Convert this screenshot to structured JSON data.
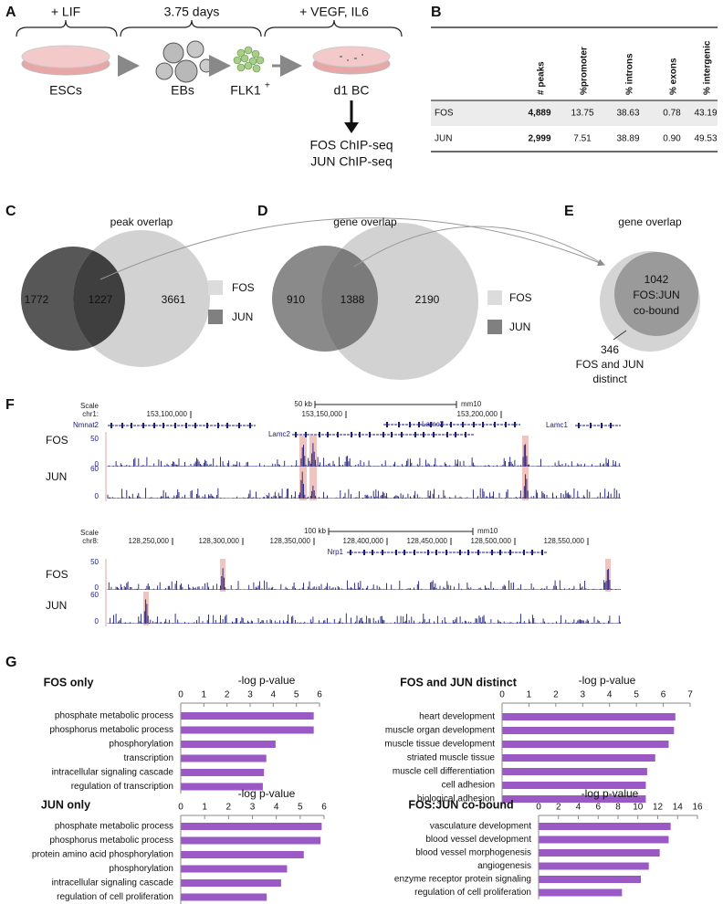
{
  "panel_labels": [
    "A",
    "B",
    "C",
    "D",
    "E",
    "F",
    "G"
  ],
  "panel_a": {
    "steps": [
      "+ LIF",
      "3.75 days",
      "+ VEGF, IL6"
    ],
    "stages": [
      "ESCs",
      "EBs",
      "FLK1",
      "d1 BC"
    ],
    "flk1_superscript": "+",
    "outputs": [
      "FOS ChIP-seq",
      "JUN ChIP-seq"
    ]
  },
  "panel_b": {
    "columns": [
      "# peaks",
      "%promoter",
      "% introns",
      "% exons",
      "% intergenic"
    ],
    "rows": [
      [
        "FOS",
        "4,889",
        "13.75",
        "38.63",
        "0.78",
        "43.19"
      ],
      [
        "JUN",
        "2,999",
        "7.51",
        "38.89",
        "0.90",
        "49.53"
      ]
    ]
  },
  "panel_c": {
    "title": "peak overlap",
    "jun_only": 1772,
    "overlap": 1227,
    "fos_only": 3661,
    "legend": [
      "FOS",
      "JUN"
    ]
  },
  "panel_d": {
    "title": "gene overlap",
    "jun_only": 910,
    "overlap": 1388,
    "fos_only": 2190,
    "legend": [
      "FOS",
      "JUN"
    ]
  },
  "panel_e": {
    "title": "gene overlap",
    "inner": [
      "1042",
      "FOS:JUN",
      "co-bound"
    ],
    "outer": [
      "346",
      "FOS and JUN",
      "distinct"
    ]
  },
  "panel_f": {
    "loci": [
      {
        "scale": "Scale",
        "chrom": "chr1:",
        "positions": [
          "153,100,000",
          "153,150,000",
          "153,200,000"
        ],
        "scale_bar": "50 kb",
        "assembly": "mm10",
        "genes": [
          "Nmnat2",
          "Lamc2",
          "Lamc2",
          "Lamc1"
        ],
        "tracks": [
          {
            "name": "FOS",
            "max": "50",
            "min": "0"
          },
          {
            "name": "JUN",
            "max": "60",
            "min": "0"
          }
        ]
      },
      {
        "scale": "Scale",
        "chrom": "chr8:",
        "positions": [
          "128,250,000",
          "128,300,000",
          "128,350,000",
          "128,400,000",
          "128,450,000",
          "128,500,000",
          "128,550,000"
        ],
        "scale_bar": "100 kb",
        "assembly": "mm10",
        "genes": [
          "Nrp1"
        ],
        "tracks": [
          {
            "name": "FOS",
            "max": "50",
            "min": "0"
          },
          {
            "name": "JUN",
            "max": "60",
            "min": "0"
          }
        ]
      }
    ]
  },
  "chart_data": [
    {
      "type": "bar",
      "orientation": "horizontal",
      "title": "FOS only",
      "xlabel": "-log p-value",
      "categories": [
        "phosphate metabolic process",
        "phosphorus metabolic process",
        "phosphorylation",
        "transcription",
        "intracellular signaling cascade",
        "regulation of transcription"
      ],
      "values": [
        5.75,
        5.75,
        4.1,
        3.7,
        3.6,
        3.55
      ],
      "color": "#9b59c6",
      "xlim": [
        0,
        6
      ],
      "xticks": [
        0,
        1,
        2,
        3,
        4,
        5,
        6
      ]
    },
    {
      "type": "bar",
      "orientation": "horizontal",
      "title": "FOS and JUN distinct",
      "xlabel": "-log p-value",
      "categories": [
        "heart development",
        "muscle organ development",
        "muscle tissue development",
        "striated muscle tissue",
        "muscle cell differentiation",
        "cell adhesion",
        "biological adhesion"
      ],
      "values": [
        6.45,
        6.4,
        6.2,
        5.7,
        5.4,
        5.35,
        5.35
      ],
      "color": "#9b59c6",
      "xlim": [
        0,
        7
      ],
      "xticks": [
        0,
        1,
        2,
        3,
        4,
        5,
        6,
        7
      ]
    },
    {
      "type": "bar",
      "orientation": "horizontal",
      "title": "JUN only",
      "xlabel": "-log p-value",
      "categories": [
        "phosphate metabolic process",
        "phosphorus metabolic process",
        "protein amino acid phosphorylation",
        "phosphorylation",
        "intracellular signaling cascade",
        "regulation of cell proliferation"
      ],
      "values": [
        5.9,
        5.85,
        5.15,
        4.45,
        4.2,
        3.6
      ],
      "color": "#9b59c6",
      "xlim": [
        0,
        6
      ],
      "xticks": [
        0,
        1,
        2,
        3,
        4,
        5,
        6
      ]
    },
    {
      "type": "bar",
      "orientation": "horizontal",
      "title": "FOS:JUN co-bound",
      "xlabel": "-log p-value",
      "categories": [
        "vasculature development",
        "blood vessel development",
        "blood vessel morphogenesis",
        "angiogenesis",
        "enzyme receptor protein signaling",
        "regulation of cell proliferation"
      ],
      "values": [
        13.3,
        13.1,
        12.2,
        11.1,
        10.3,
        8.4
      ],
      "color": "#9b59c6",
      "xlim": [
        0,
        16
      ],
      "xticks": [
        0,
        2,
        4,
        6,
        8,
        10,
        12,
        14,
        16
      ]
    }
  ]
}
